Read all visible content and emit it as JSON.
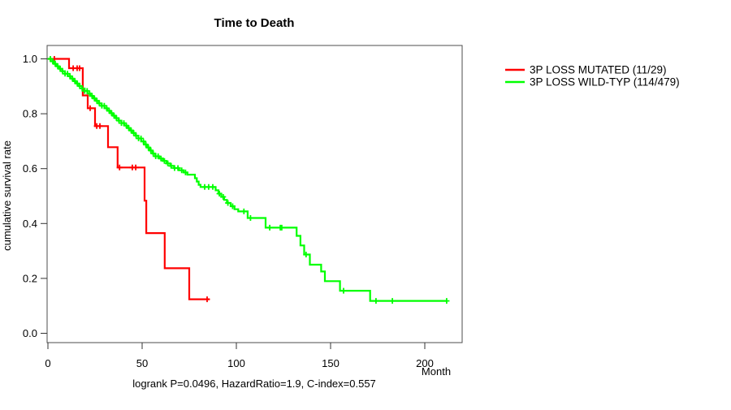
{
  "chart_data": {
    "type": "line",
    "subtype": "kaplan_meier_step",
    "title": "Time to Death",
    "xlabel": "Month",
    "ylabel": "cumulative survival rate",
    "footer": "logrank P=0.0496, HazardRatio=1.9, C-index=0.557",
    "xlim": [
      0,
      220
    ],
    "ylim": [
      0.0,
      1.0
    ],
    "xticks": [
      0,
      50,
      100,
      150,
      200
    ],
    "yticks": [
      "0.0",
      "0.2",
      "0.4",
      "0.6",
      "0.8",
      "1.0"
    ],
    "grid": false,
    "legend_position": "right-outside",
    "series": [
      {
        "id": "mutated",
        "name": "3P LOSS MUTATED (11/29)",
        "color": "#ff0000",
        "events_total": "11/29",
        "end_month": 85.8,
        "steps": [
          [
            0,
            1.0
          ],
          [
            11.2,
            0.966
          ],
          [
            18.5,
            0.867
          ],
          [
            21.1,
            0.82
          ],
          [
            25,
            0.755
          ],
          [
            31.9,
            0.678
          ],
          [
            37,
            0.604
          ],
          [
            51.3,
            0.483
          ],
          [
            52.2,
            0.365
          ],
          [
            62,
            0.237
          ],
          [
            75,
            0.124
          ]
        ],
        "censors": [
          3.4,
          13.4,
          15.5,
          16.8,
          22.4,
          25.9,
          27.6,
          38,
          44.8,
          46.6,
          84.5
        ]
      },
      {
        "id": "wild-typ",
        "name": "3P LOSS WILD-TYP (114/479)",
        "color": "#00ff00",
        "events_total": "114/479",
        "end_month": 211.6,
        "steps": [
          [
            0,
            1.0
          ],
          [
            1.5,
            0.991
          ],
          [
            3,
            0.982
          ],
          [
            4.5,
            0.973
          ],
          [
            6,
            0.964
          ],
          [
            7.5,
            0.955
          ],
          [
            9,
            0.946
          ],
          [
            10.5,
            0.937
          ],
          [
            12,
            0.928
          ],
          [
            13.5,
            0.919
          ],
          [
            15,
            0.91
          ],
          [
            16.5,
            0.901
          ],
          [
            18,
            0.892
          ],
          [
            19.5,
            0.883
          ],
          [
            21,
            0.874
          ],
          [
            22.5,
            0.865
          ],
          [
            24,
            0.856
          ],
          [
            25.5,
            0.847
          ],
          [
            27,
            0.838
          ],
          [
            28.5,
            0.829
          ],
          [
            30,
            0.82
          ],
          [
            31.5,
            0.811
          ],
          [
            33,
            0.802
          ],
          [
            34.5,
            0.793
          ],
          [
            36,
            0.784
          ],
          [
            37.5,
            0.775
          ],
          [
            39,
            0.766
          ],
          [
            40.5,
            0.757
          ],
          [
            42,
            0.748
          ],
          [
            43.5,
            0.739
          ],
          [
            45,
            0.73
          ],
          [
            46.5,
            0.72
          ],
          [
            48,
            0.71
          ],
          [
            49.5,
            0.699
          ],
          [
            51,
            0.688
          ],
          [
            52.5,
            0.677
          ],
          [
            54,
            0.666
          ],
          [
            55.5,
            0.655
          ],
          [
            57,
            0.645
          ],
          [
            59,
            0.637
          ],
          [
            61,
            0.628
          ],
          [
            63,
            0.619
          ],
          [
            65,
            0.61
          ],
          [
            67,
            0.602
          ],
          [
            69.5,
            0.594
          ],
          [
            72,
            0.586
          ],
          [
            74,
            0.578
          ],
          [
            78,
            0.565
          ],
          [
            79,
            0.553
          ],
          [
            80,
            0.541
          ],
          [
            81,
            0.533
          ],
          [
            89,
            0.521
          ],
          [
            90.5,
            0.509
          ],
          [
            92,
            0.497
          ],
          [
            93.5,
            0.486
          ],
          [
            95,
            0.475
          ],
          [
            97,
            0.463
          ],
          [
            99,
            0.452
          ],
          [
            101,
            0.444
          ],
          [
            106,
            0.42
          ],
          [
            115.5,
            0.385
          ],
          [
            132,
            0.355
          ],
          [
            134,
            0.32
          ],
          [
            136,
            0.287
          ],
          [
            139,
            0.25
          ],
          [
            145,
            0.225
          ],
          [
            147,
            0.19
          ],
          [
            155,
            0.155
          ],
          [
            171,
            0.118
          ]
        ],
        "censors": [
          1.3,
          2.6,
          3.9,
          5.2,
          6.5,
          7.8,
          9.1,
          10.4,
          11.7,
          13,
          14.3,
          15.6,
          16.9,
          18.2,
          19.5,
          20.8,
          22.1,
          23.4,
          24.7,
          26,
          27.3,
          28.6,
          29.9,
          31.2,
          32.5,
          33.8,
          35.1,
          36.4,
          37.7,
          39,
          40.3,
          41.6,
          42.9,
          44.2,
          45.5,
          46.8,
          48.1,
          49.4,
          50.7,
          52,
          53.3,
          54.6,
          55.9,
          57.2,
          58.5,
          60,
          61.8,
          63.6,
          65.4,
          67.2,
          69,
          71,
          73,
          83.2,
          85.3,
          87.5,
          91,
          93,
          95.5,
          98,
          104,
          107.5,
          117.7,
          123.3,
          124.1,
          137,
          156.9,
          174.1,
          182.8,
          211.6
        ]
      }
    ]
  }
}
